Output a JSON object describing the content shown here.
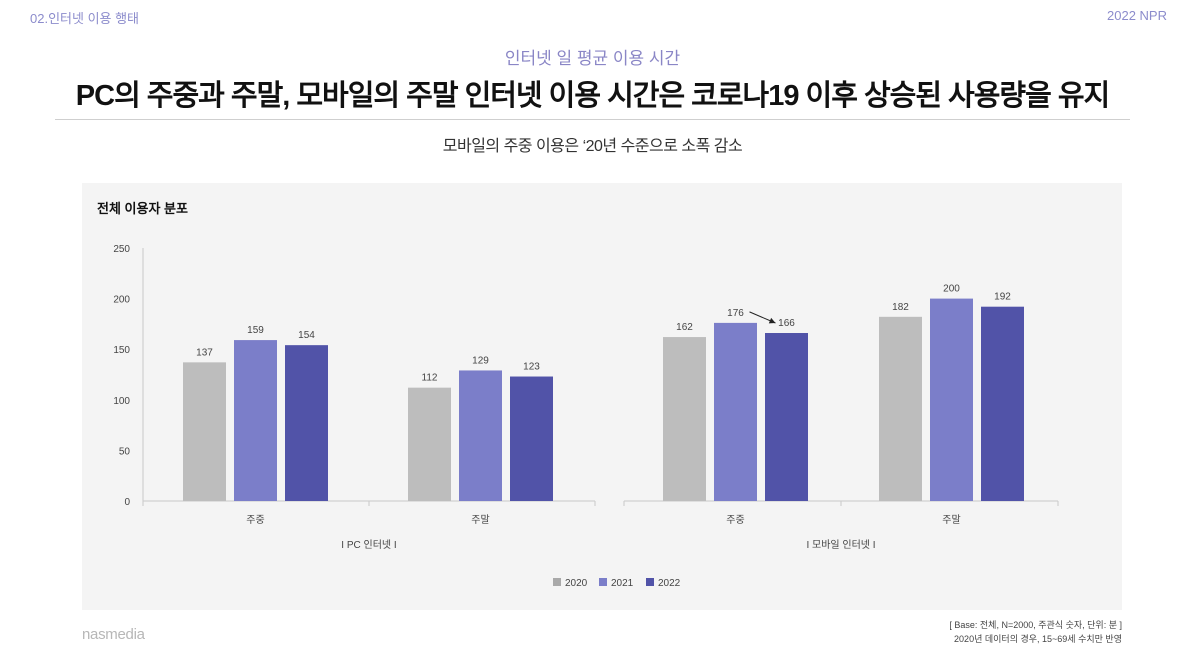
{
  "header": {
    "section": "02.인터넷 이용 행태",
    "report": "2022 NPR"
  },
  "subtitle_top": "인터넷 일 평균 이용 시간",
  "headline": "PC의 주중과 주말, 모바일의 주말 인터넷 이용 시간은 코로나19 이후 상승된 사용량을 유지",
  "subtitle": "모바일의 주중 이용은 ‘20년 수준으로 소폭 감소",
  "panel_title": "전체 이용자 분포",
  "footer": {
    "brand": "nasmedia",
    "note_line1": "[ Base: 전체, N=2000, 주관식 숫자, 단위: 분 ]",
    "note_line2": "2020년 데이터의 경우, 15~69세 수치만 반영"
  },
  "colors": {
    "2020": "#bdbdbd",
    "2021": "#7b7ec9",
    "2022": "#5153a8"
  },
  "chart_data": {
    "type": "bar",
    "title": "전체 이용자 분포",
    "ylim": [
      0,
      250
    ],
    "yticks": [
      0,
      50,
      100,
      150,
      200,
      250
    ],
    "grid": false,
    "legend_position": "bottom-center",
    "groups": [
      {
        "label": "I PC 인터넷 I",
        "categories": [
          "주중",
          "주말"
        ]
      },
      {
        "label": "I 모바일 인터넷 I",
        "categories": [
          "주중",
          "주말"
        ]
      }
    ],
    "categories": [
      "주중",
      "주말",
      "주중",
      "주말"
    ],
    "series": [
      {
        "name": "2020",
        "values": [
          137,
          112,
          162,
          182
        ]
      },
      {
        "name": "2021",
        "values": [
          159,
          129,
          176,
          200
        ]
      },
      {
        "name": "2022",
        "values": [
          154,
          123,
          166,
          192
        ]
      }
    ],
    "annotation": {
      "type": "arrow",
      "from": "176",
      "to": "166"
    }
  }
}
